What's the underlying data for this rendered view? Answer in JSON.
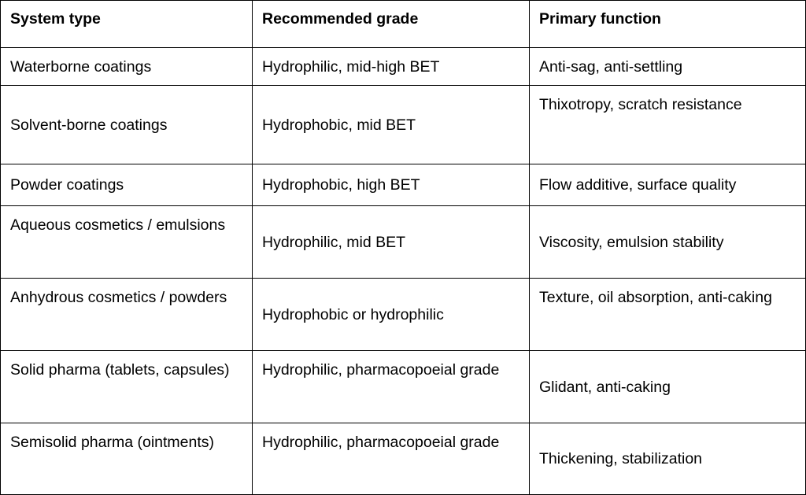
{
  "table": {
    "headers": [
      "System type",
      "Recommended grade",
      "Primary function"
    ],
    "rows": [
      [
        "Waterborne coatings",
        "Hydrophilic, mid-high BET",
        "Anti-sag, anti-settling"
      ],
      [
        "Solvent-borne coatings",
        "Hydrophobic, mid BET",
        "Thixotropy, scratch resistance"
      ],
      [
        "Powder coatings",
        "Hydrophobic, high BET",
        "Flow additive, surface quality"
      ],
      [
        "Aqueous cosmetics / emulsions",
        "Hydrophilic, mid BET",
        "Viscosity, emulsion stability"
      ],
      [
        "Anhydrous cosmetics / powders",
        "Hydrophobic or hydrophilic",
        "Texture, oil absorption, anti-caking"
      ],
      [
        "Solid pharma (tablets, capsules)",
        "Hydrophilic, pharmacopoeial grade",
        "Glidant, anti-caking"
      ],
      [
        "Semisolid pharma (ointments)",
        "Hydrophilic, pharmacopoeial grade",
        "Thickening, stabilization"
      ]
    ]
  }
}
